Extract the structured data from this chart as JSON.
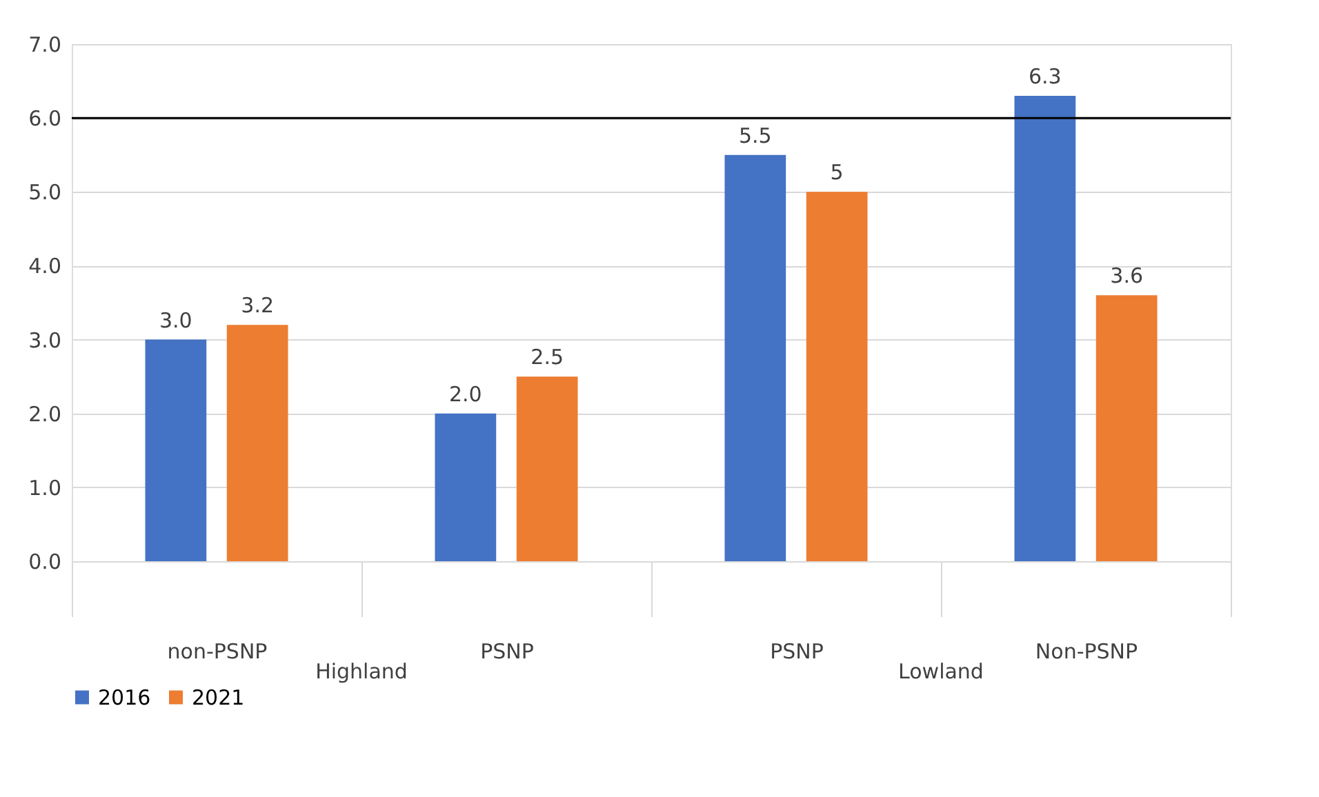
{
  "chart_data": {
    "type": "bar",
    "categories": [
      "non-PSNP",
      "PSNP",
      "PSNP",
      "Non-PSNP"
    ],
    "series": [
      {
        "name": "2016",
        "color": "#4472c4",
        "values": [
          3.0,
          2.0,
          5.5,
          6.3
        ],
        "value_labels": [
          "3.0",
          "2.0",
          "5.5",
          "6.3"
        ]
      },
      {
        "name": "2021",
        "color": "#ed7d31",
        "values": [
          3.2,
          2.5,
          5.0,
          3.6
        ],
        "value_labels": [
          "3.2",
          "2.5",
          "5",
          "3.6"
        ]
      }
    ],
    "ylim": [
      0,
      7
    ],
    "yticks": [
      {
        "value": 0,
        "label": "0.0"
      },
      {
        "value": 1,
        "label": "1.0"
      },
      {
        "value": 2,
        "label": "2.0"
      },
      {
        "value": 3,
        "label": "3.0"
      },
      {
        "value": 4,
        "label": "4.0"
      },
      {
        "value": 5,
        "label": "5.0"
      },
      {
        "value": 6,
        "label": "6.0"
      },
      {
        "value": 7,
        "label": "7.0"
      }
    ],
    "ref_lines": [
      {
        "axis": "y",
        "value": 6,
        "color": "#000000"
      }
    ],
    "annotations": [
      "Highland",
      "Lowland"
    ],
    "grid": "y",
    "legend": "bottom"
  }
}
